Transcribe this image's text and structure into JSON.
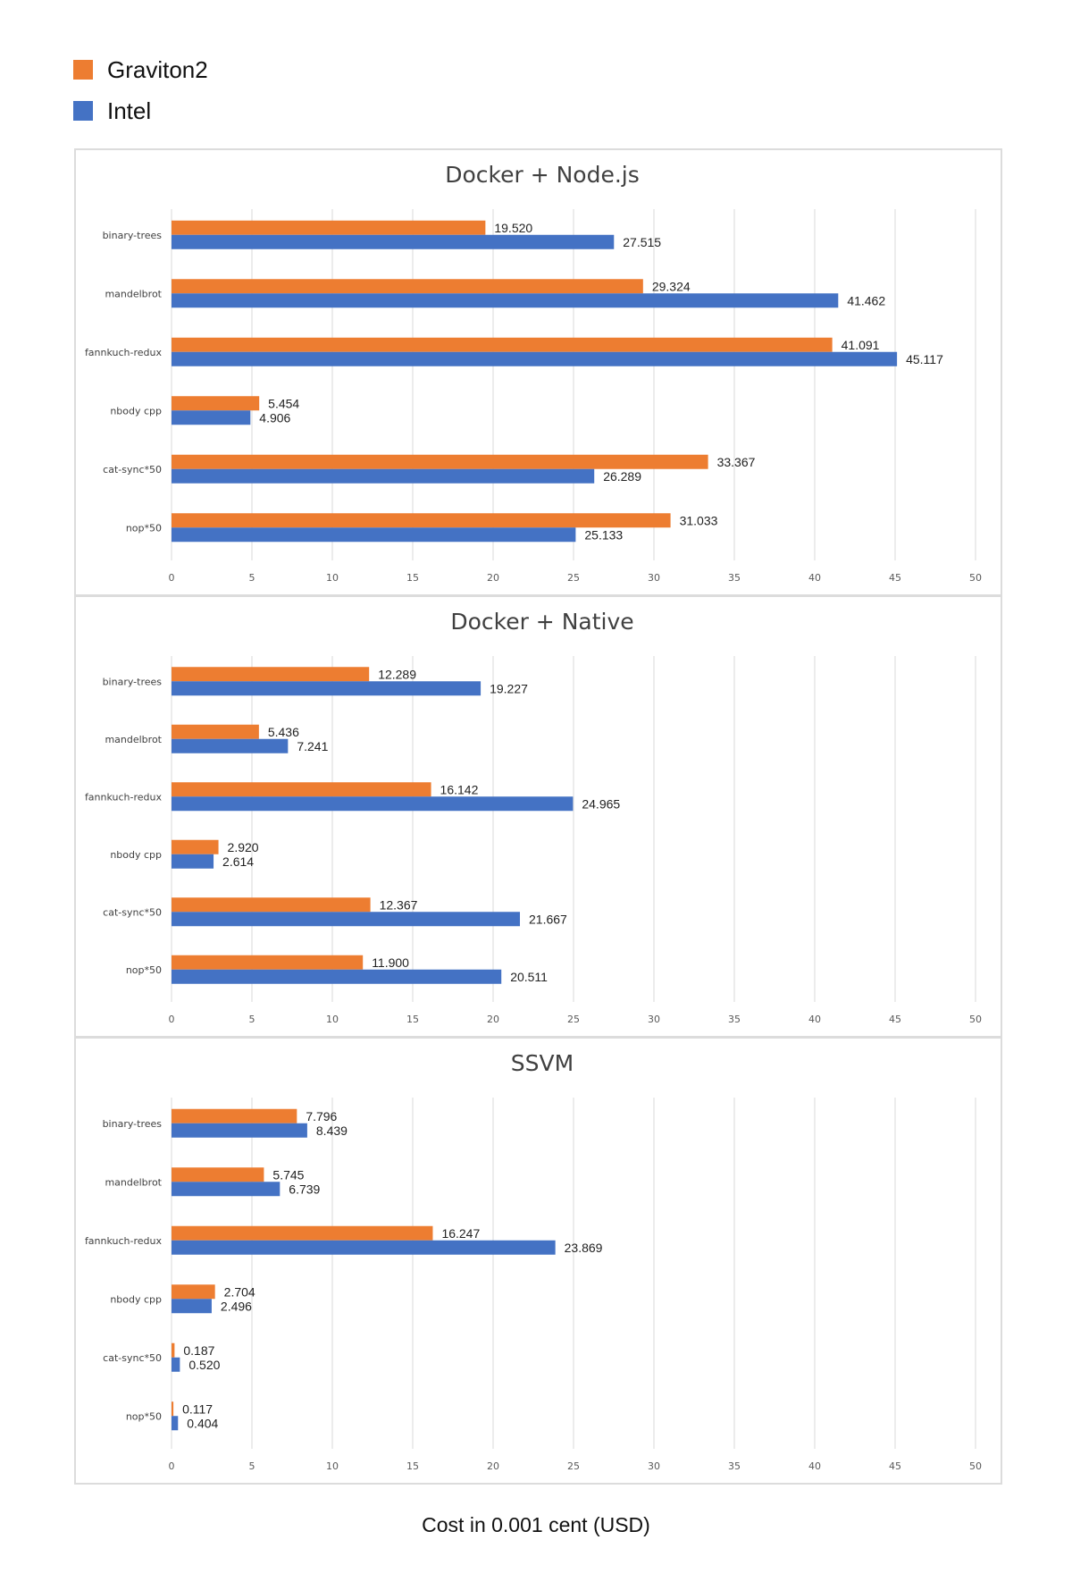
{
  "legend": {
    "graviton": {
      "label": "Graviton2",
      "color": "#ED7D31"
    },
    "intel": {
      "label": "Intel",
      "color": "#4472C4"
    }
  },
  "x_caption": "Cost in 0.001 cent (USD)",
  "chart_data": [
    {
      "type": "bar",
      "orientation": "horizontal",
      "title": "Docker + Node.js",
      "categories": [
        "binary-trees",
        "mandelbrot",
        "fannkuch-redux",
        "nbody cpp",
        "cat-sync*50",
        "nop*50"
      ],
      "series": [
        {
          "name": "Graviton2",
          "values": [
            19.52,
            29.324,
            41.091,
            5.454,
            33.367,
            31.033
          ]
        },
        {
          "name": "Intel",
          "values": [
            27.515,
            41.462,
            45.117,
            4.906,
            26.289,
            25.133
          ]
        }
      ],
      "value_labels": {
        "Graviton2": [
          "19.520",
          "29.324",
          "41.091",
          "5.454",
          "33.367",
          "31.033"
        ],
        "Intel": [
          "27.515",
          "41.462",
          "45.117",
          "4.906",
          "26.289",
          "25.133"
        ]
      },
      "xlim": [
        0,
        50
      ],
      "xticks": [
        0,
        5,
        10,
        15,
        20,
        25,
        30,
        35,
        40,
        45,
        50
      ],
      "grid": "vertical"
    },
    {
      "type": "bar",
      "orientation": "horizontal",
      "title": "Docker + Native",
      "categories": [
        "binary-trees",
        "mandelbrot",
        "fannkuch-redux",
        "nbody cpp",
        "cat-sync*50",
        "nop*50"
      ],
      "series": [
        {
          "name": "Graviton2",
          "values": [
            12.289,
            5.436,
            16.142,
            2.92,
            12.367,
            11.9
          ]
        },
        {
          "name": "Intel",
          "values": [
            19.227,
            7.241,
            24.965,
            2.614,
            21.667,
            20.511
          ]
        }
      ],
      "value_labels": {
        "Graviton2": [
          "12.289",
          "5.436",
          "16.142",
          "2.920",
          "12.367",
          "11.900"
        ],
        "Intel": [
          "19.227",
          "7.241",
          "24.965",
          "2.614",
          "21.667",
          "20.511"
        ]
      },
      "xlim": [
        0,
        50
      ],
      "xticks": [
        0,
        5,
        10,
        15,
        20,
        25,
        30,
        35,
        40,
        45,
        50
      ],
      "grid": "vertical"
    },
    {
      "type": "bar",
      "orientation": "horizontal",
      "title": "SSVM",
      "categories": [
        "binary-trees",
        "mandelbrot",
        "fannkuch-redux",
        "nbody cpp",
        "cat-sync*50",
        "nop*50"
      ],
      "series": [
        {
          "name": "Graviton2",
          "values": [
            7.796,
            5.745,
            16.247,
            2.704,
            0.187,
            0.117
          ]
        },
        {
          "name": "Intel",
          "values": [
            8.439,
            6.739,
            23.869,
            2.496,
            0.52,
            0.404
          ]
        }
      ],
      "value_labels": {
        "Graviton2": [
          "7.796",
          "5.745",
          "16.247",
          "2.704",
          "0.187",
          "0.117"
        ],
        "Intel": [
          "8.439",
          "6.739",
          "23.869",
          "2.496",
          "0.520",
          "0.404"
        ]
      },
      "xlim": [
        0,
        50
      ],
      "xticks": [
        0,
        5,
        10,
        15,
        20,
        25,
        30,
        35,
        40,
        45,
        50
      ],
      "grid": "vertical"
    }
  ]
}
